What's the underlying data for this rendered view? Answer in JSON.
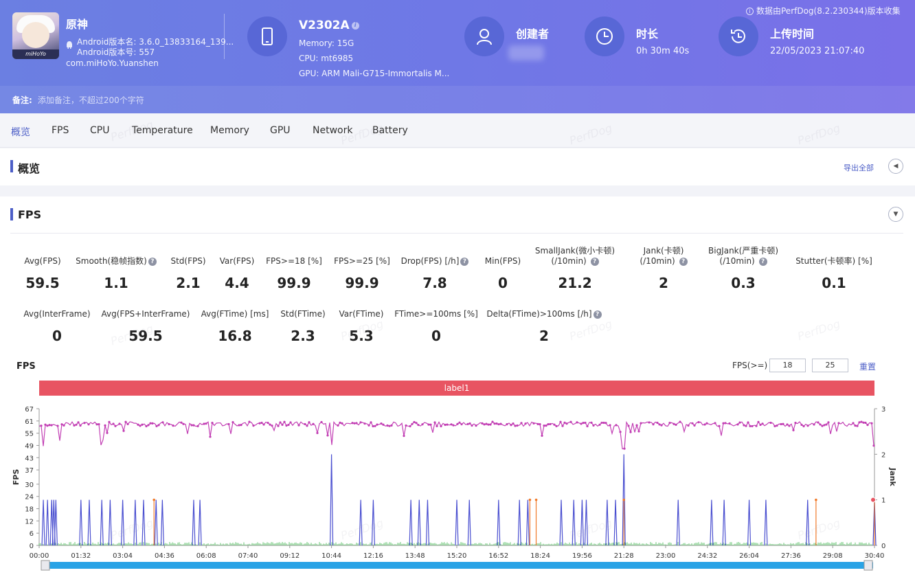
{
  "app": {
    "name": "原神",
    "version_name": "Android版本名: 3.6.0_13833164_139...",
    "version_code": "Android版本号: 557",
    "package": "com.miHoYo.Yuanshen",
    "icon_tag": "miHoYo"
  },
  "device": {
    "model": "V2302A",
    "memory": "Memory: 15G",
    "cpu": "CPU: mt6985",
    "gpu": "GPU: ARM Mali-G715-Immortalis M..."
  },
  "creator": {
    "title": "创建者"
  },
  "duration": {
    "title": "时长",
    "value": "0h 30m 40s"
  },
  "upload": {
    "title": "上传时间",
    "value": "22/05/2023 21:07:40"
  },
  "source_note": "数据由PerfDog(8.2.230344)版本收集",
  "note": {
    "label": "备注:",
    "placeholder": "添加备注，不超过200个字符"
  },
  "tabs": [
    "概览",
    "FPS",
    "CPU",
    "Temperature",
    "Memory",
    "GPU",
    "Network",
    "Battery"
  ],
  "overview": {
    "title": "概览",
    "export": "导出全部"
  },
  "fps_section": {
    "title": "FPS",
    "row1": [
      {
        "label": "Avg(FPS)",
        "value": "59.5"
      },
      {
        "label": "Smooth(稳帧指数)",
        "value": "1.1",
        "help": true
      },
      {
        "label": "Std(FPS)",
        "value": "2.1"
      },
      {
        "label": "Var(FPS)",
        "value": "4.4"
      },
      {
        "label": "FPS>=18 [%]",
        "value": "99.9"
      },
      {
        "label": "FPS>=25 [%]",
        "value": "99.9"
      },
      {
        "label": "Drop(FPS) [/h]",
        "value": "7.8",
        "help": true
      },
      {
        "label": "Min(FPS)",
        "value": "0"
      },
      {
        "label": "SmallJank(微小卡顿)",
        "label2": "(/10min)",
        "value": "21.2",
        "help": true
      },
      {
        "label": "Jank(卡顿)",
        "label2": "(/10min)",
        "value": "2",
        "help": true
      },
      {
        "label": "BigJank(严重卡顿)",
        "label2": "(/10min)",
        "value": "0.3",
        "help": true
      },
      {
        "label": "Stutter(卡顿率) [%]",
        "value": "0.1"
      }
    ],
    "row2": [
      {
        "label": "Avg(InterFrame)",
        "value": "0"
      },
      {
        "label": "Avg(FPS+InterFrame)",
        "value": "59.5"
      },
      {
        "label": "Avg(FTime) [ms]",
        "value": "16.8"
      },
      {
        "label": "Std(FTime)",
        "value": "2.3"
      },
      {
        "label": "Var(FTime)",
        "value": "5.3"
      },
      {
        "label": "FTime>=100ms [%]",
        "value": "0"
      },
      {
        "label": "Delta(FTime)>100ms [/h]",
        "value": "2",
        "help": true
      }
    ],
    "chart_title": "FPS",
    "filter_label": "FPS(>=)",
    "filter_values": [
      "18",
      "25"
    ],
    "reset": "重置",
    "label_band": "label1",
    "help_glyph": "?"
  },
  "watermark": "PerfDog",
  "colors": {
    "header": "#6b7fe2",
    "accent": "#4c5ec7",
    "fps_series": "#c23fb4",
    "jank": "#4a4fd0",
    "bigjank": "#f07a2a",
    "ftime": "#3cb44b",
    "label": "#e85462",
    "slider": "#29a3e6"
  },
  "chart_data": {
    "type": "line",
    "x_ticks": [
      "00:00",
      "01:32",
      "03:04",
      "04:36",
      "06:08",
      "07:40",
      "09:12",
      "10:44",
      "12:16",
      "13:48",
      "15:20",
      "16:52",
      "18:24",
      "19:56",
      "21:28",
      "23:00",
      "24:32",
      "26:04",
      "27:36",
      "29:08",
      "30:40"
    ],
    "y_ticks": [
      0,
      6,
      12,
      18,
      24,
      30,
      37,
      43,
      49,
      55,
      61,
      67
    ],
    "y2_ticks": [
      0,
      1,
      2,
      3
    ],
    "ylabel": "FPS",
    "y2label": "Jank",
    "ylim": [
      0,
      67
    ],
    "y2lim": [
      0,
      3
    ],
    "series": [
      {
        "name": "FPS",
        "baseline": 59.5,
        "dips_at_ticks": [
          0.1,
          0.5,
          1.5,
          7.0,
          14.0,
          20.0
        ]
      },
      {
        "name": "Jank",
        "spikes": [
          [
            0.1,
            1
          ],
          [
            0.2,
            1
          ],
          [
            0.3,
            1
          ],
          [
            0.35,
            1
          ],
          [
            0.4,
            1
          ],
          [
            1.0,
            1
          ],
          [
            1.2,
            1
          ],
          [
            1.5,
            1
          ],
          [
            1.7,
            1
          ],
          [
            2.0,
            1
          ],
          [
            2.3,
            1
          ],
          [
            2.5,
            1
          ],
          [
            2.8,
            1
          ],
          [
            2.95,
            1
          ],
          [
            3.7,
            1
          ],
          [
            3.85,
            1
          ],
          [
            7.0,
            2
          ],
          [
            7.7,
            1
          ],
          [
            8.0,
            1
          ],
          [
            8.9,
            1
          ],
          [
            9.1,
            1
          ],
          [
            9.3,
            1
          ],
          [
            10.0,
            1
          ],
          [
            10.3,
            1
          ],
          [
            11.0,
            1
          ],
          [
            11.5,
            1
          ],
          [
            11.7,
            1
          ],
          [
            12.5,
            1
          ],
          [
            12.8,
            1
          ],
          [
            13.0,
            1
          ],
          [
            13.1,
            1
          ],
          [
            13.6,
            1
          ],
          [
            13.8,
            1
          ],
          [
            14.0,
            2
          ],
          [
            15.3,
            1
          ],
          [
            16.1,
            1
          ],
          [
            16.4,
            1
          ],
          [
            17.0,
            1
          ],
          [
            17.4,
            1
          ],
          [
            18.4,
            1
          ],
          [
            20.0,
            1
          ]
        ]
      },
      {
        "name": "BigJank",
        "spikes": [
          [
            2.75,
            1
          ],
          [
            11.75,
            1
          ],
          [
            11.9,
            1
          ],
          [
            14.0,
            1
          ],
          [
            18.6,
            1
          ],
          [
            20.0,
            1
          ]
        ]
      }
    ]
  }
}
